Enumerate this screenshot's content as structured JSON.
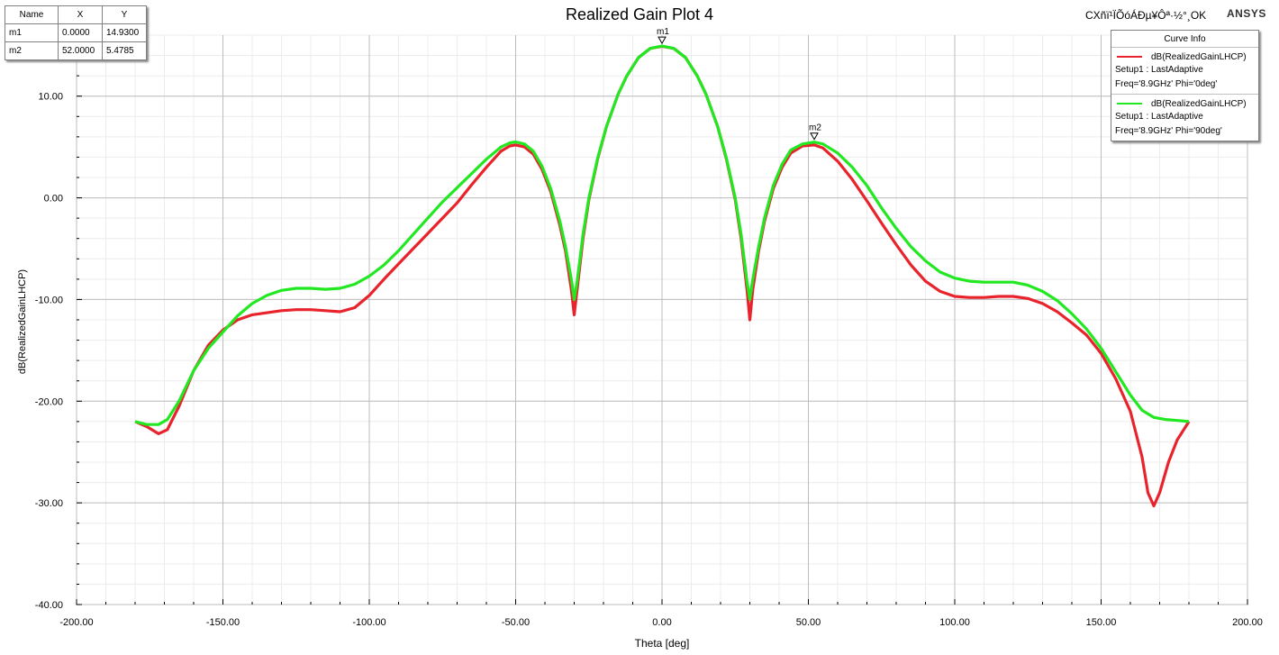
{
  "header": {
    "title": "Realized Gain Plot 4",
    "project_label": "CXñï¹ÏÕóÁÐµ¥Ôª·½°¸OK",
    "brand": "ANSYS"
  },
  "marker_table": {
    "headers": [
      "Name",
      "X",
      "Y"
    ],
    "rows": [
      [
        "m1",
        "0.0000",
        "14.9300"
      ],
      [
        "m2",
        "52.0000",
        "5.4785"
      ]
    ]
  },
  "legend": {
    "title": "Curve Info",
    "entries": [
      {
        "name": "dB(RealizedGainLHCP)",
        "line2": "Setup1 : LastAdaptive",
        "line3": "Freq='8.9GHz' Phi='0deg'",
        "color": "#e8232b"
      },
      {
        "name": "dB(RealizedGainLHCP)",
        "line2": "Setup1 : LastAdaptive",
        "line3": "Freq='8.9GHz' Phi='90deg'",
        "color": "#22e822"
      }
    ]
  },
  "chart_data": {
    "type": "line",
    "title": "Realized Gain Plot 4",
    "xlabel": "Theta [deg]",
    "ylabel": "dB(RealizedGainLHCP)",
    "xlim": [
      -200,
      200
    ],
    "ylim": [
      -40,
      16
    ],
    "x_ticks": [
      "-200.00",
      "-150.00",
      "-100.00",
      "-50.00",
      "0.00",
      "50.00",
      "100.00",
      "150.00",
      "200.00"
    ],
    "y_ticks": [
      "10.00",
      "0.00",
      "-10.00",
      "-20.00",
      "-30.00",
      "-40.00"
    ],
    "x_tick_values": [
      -200,
      -150,
      -100,
      -50,
      0,
      50,
      100,
      150,
      200
    ],
    "y_tick_values": [
      10,
      0,
      -10,
      -20,
      -30,
      -40
    ],
    "grid": true,
    "legend_position": "top-right",
    "series": [
      {
        "name": "dB(RealizedGainLHCP) Setup1 : LastAdaptive Freq='8.9GHz' Phi='0deg'",
        "color": "#e8232b",
        "points": [
          [
            -180,
            -22.0
          ],
          [
            -176,
            -22.5
          ],
          [
            -172,
            -23.2
          ],
          [
            -169,
            -22.8
          ],
          [
            -165,
            -20.5
          ],
          [
            -160,
            -17.0
          ],
          [
            -155,
            -14.5
          ],
          [
            -150,
            -13.0
          ],
          [
            -145,
            -12.0
          ],
          [
            -140,
            -11.5
          ],
          [
            -130,
            -11.1
          ],
          [
            -125,
            -11.0
          ],
          [
            -120,
            -11.0
          ],
          [
            -115,
            -11.1
          ],
          [
            -110,
            -11.2
          ],
          [
            -105,
            -10.8
          ],
          [
            -100,
            -9.6
          ],
          [
            -95,
            -8.0
          ],
          [
            -90,
            -6.5
          ],
          [
            -85,
            -5.0
          ],
          [
            -80,
            -3.5
          ],
          [
            -75,
            -2.0
          ],
          [
            -70,
            -0.5
          ],
          [
            -65,
            1.3
          ],
          [
            -60,
            3.0
          ],
          [
            -55,
            4.6
          ],
          [
            -52,
            5.1
          ],
          [
            -50,
            5.2
          ],
          [
            -47,
            5.0
          ],
          [
            -44,
            4.3
          ],
          [
            -41,
            2.8
          ],
          [
            -38,
            0.6
          ],
          [
            -35,
            -2.6
          ],
          [
            -33,
            -5.2
          ],
          [
            -31,
            -9.0
          ],
          [
            -30,
            -11.5
          ],
          [
            -29,
            -9.0
          ],
          [
            -27,
            -4.0
          ],
          [
            -25,
            -0.2
          ],
          [
            -22,
            3.8
          ],
          [
            -19,
            7.0
          ],
          [
            -15,
            10.2
          ],
          [
            -12,
            12.0
          ],
          [
            -8,
            13.8
          ],
          [
            -4,
            14.7
          ],
          [
            0,
            14.9
          ],
          [
            4,
            14.7
          ],
          [
            8,
            13.8
          ],
          [
            12,
            12.0
          ],
          [
            15,
            10.2
          ],
          [
            19,
            7.0
          ],
          [
            22,
            3.8
          ],
          [
            25,
            -0.2
          ],
          [
            27,
            -4.0
          ],
          [
            29,
            -9.0
          ],
          [
            30,
            -12.0
          ],
          [
            31,
            -9.0
          ],
          [
            33,
            -5.2
          ],
          [
            35,
            -2.3
          ],
          [
            38,
            0.9
          ],
          [
            41,
            3.0
          ],
          [
            44,
            4.4
          ],
          [
            48,
            5.1
          ],
          [
            52,
            5.2
          ],
          [
            55,
            4.9
          ],
          [
            60,
            3.6
          ],
          [
            65,
            1.8
          ],
          [
            70,
            -0.3
          ],
          [
            75,
            -2.5
          ],
          [
            80,
            -4.6
          ],
          [
            85,
            -6.6
          ],
          [
            90,
            -8.2
          ],
          [
            95,
            -9.2
          ],
          [
            100,
            -9.7
          ],
          [
            105,
            -9.8
          ],
          [
            110,
            -9.8
          ],
          [
            115,
            -9.7
          ],
          [
            120,
            -9.7
          ],
          [
            125,
            -9.9
          ],
          [
            130,
            -10.4
          ],
          [
            135,
            -11.2
          ],
          [
            140,
            -12.3
          ],
          [
            145,
            -13.5
          ],
          [
            150,
            -15.3
          ],
          [
            155,
            -17.8
          ],
          [
            160,
            -21.0
          ],
          [
            164,
            -25.5
          ],
          [
            166,
            -29.0
          ],
          [
            168,
            -30.3
          ],
          [
            170,
            -29.0
          ],
          [
            173,
            -26.0
          ],
          [
            176,
            -23.8
          ],
          [
            180,
            -22.0
          ]
        ]
      },
      {
        "name": "dB(RealizedGainLHCP) Setup1 : LastAdaptive Freq='8.9GHz' Phi='90deg'",
        "color": "#22e822",
        "points": [
          [
            -180,
            -22.0
          ],
          [
            -176,
            -22.3
          ],
          [
            -172,
            -22.3
          ],
          [
            -169,
            -21.8
          ],
          [
            -165,
            -20.0
          ],
          [
            -160,
            -17.0
          ],
          [
            -155,
            -14.8
          ],
          [
            -150,
            -13.2
          ],
          [
            -145,
            -11.6
          ],
          [
            -140,
            -10.4
          ],
          [
            -135,
            -9.6
          ],
          [
            -130,
            -9.1
          ],
          [
            -125,
            -8.9
          ],
          [
            -120,
            -8.9
          ],
          [
            -115,
            -9.0
          ],
          [
            -110,
            -8.9
          ],
          [
            -105,
            -8.5
          ],
          [
            -100,
            -7.7
          ],
          [
            -95,
            -6.6
          ],
          [
            -90,
            -5.2
          ],
          [
            -85,
            -3.6
          ],
          [
            -80,
            -2.0
          ],
          [
            -75,
            -0.4
          ],
          [
            -70,
            1.0
          ],
          [
            -65,
            2.4
          ],
          [
            -60,
            3.8
          ],
          [
            -55,
            5.0
          ],
          [
            -52,
            5.4
          ],
          [
            -50,
            5.5
          ],
          [
            -47,
            5.3
          ],
          [
            -44,
            4.6
          ],
          [
            -41,
            3.1
          ],
          [
            -38,
            0.9
          ],
          [
            -35,
            -2.2
          ],
          [
            -33,
            -4.8
          ],
          [
            -31,
            -8.0
          ],
          [
            -30,
            -10.0
          ],
          [
            -29,
            -8.2
          ],
          [
            -27,
            -3.6
          ],
          [
            -25,
            0.0
          ],
          [
            -22,
            3.9
          ],
          [
            -19,
            7.0
          ],
          [
            -15,
            10.2
          ],
          [
            -12,
            12.0
          ],
          [
            -8,
            13.8
          ],
          [
            -4,
            14.7
          ],
          [
            0,
            14.93
          ],
          [
            4,
            14.7
          ],
          [
            8,
            13.8
          ],
          [
            12,
            12.0
          ],
          [
            15,
            10.2
          ],
          [
            19,
            7.0
          ],
          [
            22,
            3.9
          ],
          [
            25,
            0.0
          ],
          [
            27,
            -3.6
          ],
          [
            29,
            -8.2
          ],
          [
            30,
            -10.0
          ],
          [
            31,
            -8.0
          ],
          [
            33,
            -4.8
          ],
          [
            35,
            -2.0
          ],
          [
            38,
            1.2
          ],
          [
            41,
            3.3
          ],
          [
            44,
            4.7
          ],
          [
            48,
            5.3
          ],
          [
            52,
            5.48
          ],
          [
            55,
            5.3
          ],
          [
            60,
            4.4
          ],
          [
            65,
            3.0
          ],
          [
            70,
            1.2
          ],
          [
            75,
            -1.0
          ],
          [
            80,
            -3.0
          ],
          [
            85,
            -4.8
          ],
          [
            90,
            -6.2
          ],
          [
            95,
            -7.3
          ],
          [
            100,
            -7.9
          ],
          [
            105,
            -8.2
          ],
          [
            110,
            -8.3
          ],
          [
            115,
            -8.3
          ],
          [
            120,
            -8.3
          ],
          [
            125,
            -8.6
          ],
          [
            130,
            -9.2
          ],
          [
            135,
            -10.1
          ],
          [
            140,
            -11.4
          ],
          [
            145,
            -12.9
          ],
          [
            150,
            -14.8
          ],
          [
            155,
            -17.1
          ],
          [
            160,
            -19.4
          ],
          [
            164,
            -20.9
          ],
          [
            168,
            -21.6
          ],
          [
            172,
            -21.8
          ],
          [
            176,
            -21.9
          ],
          [
            180,
            -22.0
          ]
        ]
      }
    ],
    "markers": [
      {
        "name": "m1",
        "x": 0.0,
        "y": 14.93
      },
      {
        "name": "m2",
        "x": 52.0,
        "y": 5.4785
      }
    ]
  }
}
